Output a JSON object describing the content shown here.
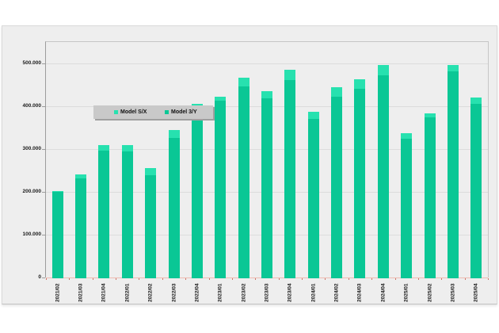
{
  "page": {
    "background": "#ffffff",
    "title": ""
  },
  "panel": {
    "background": "#eeeeee"
  },
  "legend": {
    "background": "#c9c9c9",
    "items": [
      {
        "label": "Model S/X",
        "color": "#27e1af"
      },
      {
        "label": "Model 3/Y",
        "color": "#0ac795"
      }
    ]
  },
  "chart_data": {
    "type": "bar",
    "stacked": true,
    "title": "",
    "xlabel": "",
    "ylabel": "",
    "grid": "horizontal",
    "legend_position": "top-left-inside",
    "categories": [
      "2021/02",
      "2021/03",
      "2021/04",
      "2022/01",
      "2022/02",
      "2022/03",
      "2022/04",
      "2023/01",
      "2023/02",
      "2023/03",
      "2023/04",
      "2024/01",
      "2024/02",
      "2024/03",
      "2024/04",
      "2025/01",
      "2025/02",
      "2025/03",
      "2025/04"
    ],
    "series": [
      {
        "name": "Model S/X",
        "color": "#27e1af",
        "stack_position": "top",
        "values": [
          1890,
          9275,
          11750,
          14724,
          16162,
          18672,
          17147,
          10695,
          19225,
          15985,
          22969,
          17027,
          21551,
          22915,
          23640,
          12881,
          10394,
          15933,
          14000
        ]
      },
      {
        "name": "Model 3/Y",
        "color": "#0ac795",
        "stack_position": "bottom",
        "values": [
          199360,
          232025,
          296850,
          295324,
          238533,
          325158,
          388131,
          412180,
          446915,
          419074,
          461538,
          369783,
          422405,
          439975,
          471930,
          323800,
          373728,
          481166,
          406000
        ]
      }
    ],
    "totals": [
      201250,
      241300,
      308600,
      310048,
      254695,
      343830,
      405278,
      422875,
      466140,
      435059,
      484507,
      386810,
      443956,
      462890,
      495570,
      336681,
      384122,
      497099,
      420000
    ],
    "y_axis": {
      "min": 0,
      "max": 550000,
      "tick_interval": 100000,
      "tick_labels": [
        "0",
        "100.000",
        "200.000",
        "300.000",
        "400.000",
        "500.000"
      ]
    }
  }
}
